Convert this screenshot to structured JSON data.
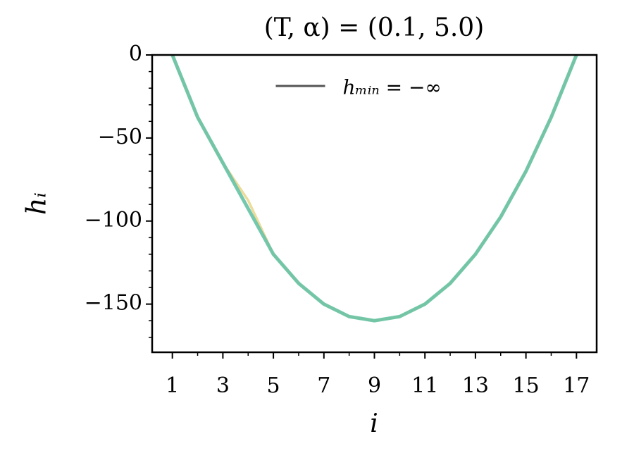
{
  "chart_data": {
    "type": "line",
    "title": "(T, α) = (0.1, 5.0)",
    "xlabel": "i",
    "ylabel": "hᵢ",
    "x": [
      1,
      2,
      3,
      4,
      5,
      6,
      7,
      8,
      9,
      10,
      11,
      12,
      13,
      14,
      15,
      16,
      17
    ],
    "series": [
      {
        "color": "#d7301f",
        "values": [
          0,
          -37.5,
          -65,
          -87.5,
          -120,
          -137.5,
          -150,
          -157.5,
          -160,
          -157.5,
          -150,
          -137.5,
          -120,
          -97.5,
          -70,
          -37.5,
          0
        ]
      },
      {
        "color": "#eef0a0",
        "values": [
          0,
          -37.5,
          -65,
          -87.5,
          -120,
          -137.5,
          -150,
          -157.5,
          -160,
          -157.5,
          -150,
          -137.5,
          -120,
          -97.5,
          -70,
          -37.5,
          0
        ]
      },
      {
        "color": "#66c2a5",
        "values": [
          0,
          -37.5,
          -65,
          -92.5,
          -120,
          -137.5,
          -150,
          -157.5,
          -160,
          -157.5,
          -150,
          -137.5,
          -120,
          -97.5,
          -70,
          -37.5,
          0
        ]
      }
    ],
    "legend": {
      "label": "hₘᵢₙ = −∞",
      "color": "#555555",
      "position": "upper center"
    },
    "xlim": [
      0.2,
      17.8
    ],
    "ylim": [
      -179,
      0
    ],
    "xticks": [
      1,
      3,
      5,
      7,
      9,
      11,
      13,
      15,
      17
    ],
    "xticks_minor": [
      2,
      4,
      6,
      8,
      10,
      12,
      14,
      16
    ],
    "yticks": [
      {
        "value": -150,
        "label": "−150"
      },
      {
        "value": -100,
        "label": "−100"
      },
      {
        "value": -50,
        "label": "−50"
      },
      0
    ],
    "yticks_minor": [
      -170,
      -160,
      -140,
      -130,
      -120,
      -110,
      -90,
      -80,
      -70,
      -60,
      -40,
      -30,
      -20,
      -10
    ]
  }
}
